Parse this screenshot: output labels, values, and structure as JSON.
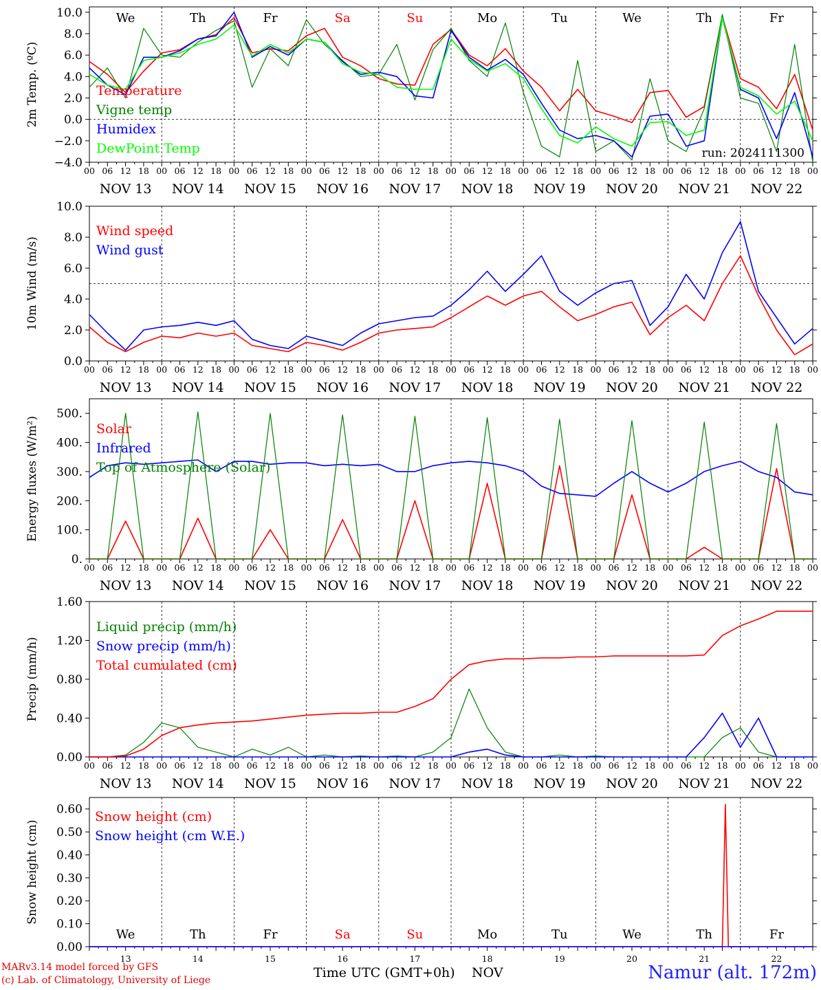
{
  "days": [
    {
      "weekday": "We",
      "weekend": false,
      "date": "NOV 13",
      "num": "13"
    },
    {
      "weekday": "Th",
      "weekend": false,
      "date": "NOV 14",
      "num": "14"
    },
    {
      "weekday": "Fr",
      "weekend": false,
      "date": "NOV 15",
      "num": "15"
    },
    {
      "weekday": "Sa",
      "weekend": true,
      "date": "NOV 16",
      "num": "16"
    },
    {
      "weekday": "Su",
      "weekend": true,
      "date": "NOV 17",
      "num": "17"
    },
    {
      "weekday": "Mo",
      "weekend": false,
      "date": "NOV 18",
      "num": "18"
    },
    {
      "weekday": "Tu",
      "weekend": false,
      "date": "NOV 19",
      "num": "19"
    },
    {
      "weekday": "We",
      "weekend": false,
      "date": "NOV 20",
      "num": "20"
    },
    {
      "weekday": "Th",
      "weekend": false,
      "date": "NOV 21",
      "num": "21"
    },
    {
      "weekday": "Fr",
      "weekend": false,
      "date": "NOV 22",
      "num": "22"
    }
  ],
  "hour_ticks": [
    "00",
    "06",
    "12",
    "18"
  ],
  "last_tick": "00",
  "colors": {
    "red": "#ff0000",
    "green": "#008000",
    "blue": "#0000ff",
    "lightgreen": "#00ff00",
    "weekend": "#ff0000",
    "text": "#000000"
  },
  "footer": {
    "credit_line1": "MARv3.14 model forced by GFS",
    "credit_line2": "(c) Lab. of Climatology, University of Liege",
    "xlabel": "Time UTC (GMT+0h)",
    "month": "NOV",
    "location": "Namur (alt. 172m)"
  },
  "chart_data": [
    {
      "type": "line",
      "ylabel": "2m Temp. (ºC)",
      "ylim": [
        -4,
        10.5
      ],
      "yticks": [
        -4,
        -2,
        0,
        2,
        4,
        6,
        8,
        10
      ],
      "ytick_labels": [
        "−4.0",
        "−2.0",
        "0.0",
        "2.0",
        "4.0",
        "6.0",
        "8.0",
        "10.0"
      ],
      "ref_line": 0,
      "annotation": "run: 2024111300",
      "show_weekdays": true,
      "x_hours": [
        0,
        6,
        12,
        18,
        24,
        30,
        36,
        42,
        48,
        54,
        60,
        66,
        72,
        78,
        84,
        90,
        96,
        102,
        108,
        114,
        120,
        126,
        132,
        138,
        144,
        150,
        156,
        162,
        168,
        174,
        180,
        186,
        192,
        198,
        204,
        210,
        216,
        222,
        228,
        234,
        240
      ],
      "series": [
        {
          "name": "Temperature",
          "color": "red",
          "values": [
            5.4,
            4.2,
            2.5,
            4.5,
            6.2,
            6.5,
            7.5,
            7.9,
            9.5,
            6.2,
            6.6,
            6.4,
            7.8,
            8.5,
            5.8,
            5.0,
            3.8,
            3.3,
            3.2,
            7.0,
            8.4,
            6.0,
            5.0,
            6.6,
            4.5,
            3.0,
            0.8,
            2.8,
            0.8,
            0.3,
            -0.3,
            2.5,
            2.7,
            0.2,
            1.2,
            9.6,
            3.8,
            3.0,
            1.0,
            4.2,
            -1.0
          ]
        },
        {
          "name": "Vigne temp",
          "color": "green",
          "values": [
            3.0,
            4.8,
            2.0,
            8.5,
            6.0,
            5.8,
            7.2,
            8.3,
            9.2,
            3.0,
            6.6,
            5.0,
            9.3,
            7.0,
            5.5,
            4.0,
            4.2,
            7.0,
            1.8,
            6.5,
            8.5,
            5.5,
            4.0,
            9.0,
            2.5,
            -2.5,
            -3.5,
            5.5,
            -3.0,
            -2.0,
            -3.8,
            3.8,
            -2.0,
            -3.0,
            1.0,
            9.8,
            2.0,
            1.5,
            -3.0,
            7.0,
            -4.0
          ]
        },
        {
          "name": "Humidex",
          "color": "blue",
          "values": [
            4.8,
            3.2,
            2.3,
            5.8,
            5.8,
            6.4,
            7.5,
            7.8,
            10.0,
            5.8,
            6.8,
            6.0,
            7.5,
            7.2,
            5.4,
            4.2,
            4.4,
            4.0,
            2.2,
            2.0,
            8.3,
            5.8,
            4.6,
            5.6,
            4.2,
            1.5,
            -1.0,
            -1.8,
            -1.5,
            -2.0,
            -3.5,
            0.3,
            0.5,
            -2.5,
            -2.0,
            9.5,
            2.8,
            2.0,
            -1.8,
            2.5,
            -3.5
          ]
        },
        {
          "name": "DewPoint Temp",
          "color": "lightgreen",
          "values": [
            4.2,
            3.2,
            2.8,
            5.5,
            5.8,
            6.2,
            7.0,
            7.5,
            8.8,
            5.9,
            7.0,
            6.2,
            7.5,
            7.2,
            5.2,
            4.4,
            4.2,
            3.0,
            2.8,
            2.8,
            7.5,
            5.6,
            4.5,
            5.2,
            3.8,
            1.0,
            -1.5,
            -2.2,
            -0.7,
            -1.8,
            -2.5,
            -0.3,
            -0.2,
            -1.5,
            -1.0,
            9.5,
            3.0,
            2.2,
            0.5,
            1.7,
            -2.0
          ]
        }
      ]
    },
    {
      "type": "line",
      "ylabel": "10m Wind (m/s)",
      "ylim": [
        0,
        10
      ],
      "yticks": [
        0,
        2,
        4,
        6,
        8,
        10
      ],
      "ytick_labels": [
        "0.0",
        "2.0",
        "4.0",
        "6.0",
        "8.0",
        "10.0"
      ],
      "ref_line": 5,
      "x_hours": [
        0,
        6,
        12,
        18,
        24,
        30,
        36,
        42,
        48,
        54,
        60,
        66,
        72,
        78,
        84,
        90,
        96,
        102,
        108,
        114,
        120,
        126,
        132,
        138,
        144,
        150,
        156,
        162,
        168,
        174,
        180,
        186,
        192,
        198,
        204,
        210,
        216,
        222,
        228,
        234,
        240
      ],
      "series": [
        {
          "name": "Wind speed",
          "color": "red",
          "values": [
            2.2,
            1.2,
            0.6,
            1.2,
            1.6,
            1.5,
            1.8,
            1.6,
            1.8,
            1.0,
            0.8,
            0.6,
            1.2,
            1.0,
            0.7,
            1.2,
            1.8,
            2.0,
            2.1,
            2.2,
            2.8,
            3.5,
            4.2,
            3.6,
            4.2,
            4.5,
            3.5,
            2.6,
            3.0,
            3.5,
            3.8,
            1.7,
            2.8,
            3.6,
            2.6,
            5.0,
            6.8,
            4.2,
            2.0,
            0.4,
            1.1
          ]
        },
        {
          "name": "Wind gust",
          "color": "blue",
          "values": [
            3.0,
            1.8,
            0.7,
            2.0,
            2.2,
            2.3,
            2.5,
            2.3,
            2.6,
            1.4,
            1.0,
            0.8,
            1.6,
            1.3,
            1.0,
            1.8,
            2.4,
            2.6,
            2.8,
            2.9,
            3.6,
            4.6,
            5.8,
            4.5,
            5.6,
            6.8,
            4.5,
            3.6,
            4.4,
            5.0,
            5.2,
            2.3,
            3.5,
            5.6,
            4.0,
            7.0,
            9.0,
            4.5,
            2.8,
            1.1,
            2.1
          ]
        }
      ]
    },
    {
      "type": "line",
      "ylabel": "Energy fluxes (W/m²)",
      "ylim": [
        0,
        550
      ],
      "yticks": [
        0,
        100,
        200,
        300,
        400,
        500
      ],
      "ytick_labels": [
        "0.",
        "100.",
        "200.",
        "300.",
        "400.",
        "500."
      ],
      "ref_line": null,
      "x_hours": [
        0,
        6,
        12,
        18,
        24,
        30,
        36,
        42,
        48,
        54,
        60,
        66,
        72,
        78,
        84,
        90,
        96,
        102,
        108,
        114,
        120,
        126,
        132,
        138,
        144,
        150,
        156,
        162,
        168,
        174,
        180,
        186,
        192,
        198,
        204,
        210,
        216,
        222,
        228,
        234,
        240
      ],
      "series": [
        {
          "name": "Solar",
          "color": "red",
          "values": [
            0,
            0,
            130,
            0,
            0,
            0,
            140,
            0,
            0,
            0,
            100,
            0,
            0,
            0,
            135,
            0,
            0,
            0,
            200,
            0,
            0,
            0,
            260,
            0,
            0,
            0,
            320,
            0,
            0,
            0,
            220,
            0,
            0,
            0,
            40,
            0,
            0,
            0,
            310,
            0,
            0
          ]
        },
        {
          "name": "Infrared",
          "color": "blue",
          "values": [
            280,
            320,
            330,
            325,
            330,
            335,
            340,
            300,
            335,
            335,
            325,
            330,
            330,
            320,
            325,
            320,
            325,
            300,
            300,
            320,
            330,
            335,
            330,
            320,
            300,
            250,
            225,
            220,
            215,
            260,
            300,
            260,
            230,
            260,
            300,
            320,
            335,
            300,
            280,
            230,
            220
          ]
        },
        {
          "name": "Top of Atmosphere (Solar)",
          "color": "green",
          "values": [
            0,
            0,
            500,
            0,
            0,
            0,
            505,
            0,
            0,
            0,
            500,
            0,
            0,
            0,
            495,
            0,
            0,
            0,
            490,
            0,
            0,
            0,
            485,
            0,
            0,
            0,
            480,
            0,
            0,
            0,
            475,
            0,
            0,
            0,
            470,
            0,
            0,
            0,
            465,
            0,
            0
          ]
        }
      ]
    },
    {
      "type": "line",
      "ylabel": "Precip (mm/h)",
      "ylim": [
        0,
        1.6
      ],
      "yticks": [
        0,
        0.4,
        0.8,
        1.2,
        1.6
      ],
      "ytick_labels": [
        "0.00",
        "0.40",
        "0.80",
        "1.20",
        "1.60"
      ],
      "ref_line": null,
      "x_hours": [
        0,
        6,
        12,
        18,
        24,
        30,
        36,
        42,
        48,
        54,
        60,
        66,
        72,
        78,
        84,
        90,
        96,
        102,
        108,
        114,
        120,
        126,
        132,
        138,
        144,
        150,
        156,
        162,
        168,
        174,
        180,
        186,
        192,
        198,
        204,
        210,
        216,
        222,
        228,
        234,
        240
      ],
      "series": [
        {
          "name": "Liquid precip (mm/h)",
          "color": "green",
          "values": [
            0,
            0,
            0.02,
            0.15,
            0.35,
            0.3,
            0.1,
            0.05,
            0,
            0.08,
            0.02,
            0.1,
            0,
            0.02,
            0,
            0.01,
            0,
            0.01,
            0,
            0.05,
            0.2,
            0.7,
            0.3,
            0.05,
            0,
            0,
            0.02,
            0,
            0.01,
            0,
            0,
            0,
            0,
            0,
            0,
            0.2,
            0.3,
            0.05,
            0,
            0,
            0
          ]
        },
        {
          "name": "Snow precip (mm/h)",
          "color": "blue",
          "values": [
            0,
            0,
            0,
            0,
            0,
            0,
            0,
            0,
            0,
            0,
            0,
            0,
            0,
            0,
            0,
            0,
            0,
            0,
            0,
            0,
            0,
            0.05,
            0.08,
            0.02,
            0,
            0,
            0,
            0,
            0,
            0,
            0,
            0,
            0,
            0,
            0.2,
            0.45,
            0.1,
            0.4,
            0,
            0,
            0
          ]
        },
        {
          "name": "Total cumulated (cm)",
          "color": "red",
          "values": [
            0,
            0,
            0.01,
            0.08,
            0.22,
            0.3,
            0.33,
            0.35,
            0.36,
            0.37,
            0.39,
            0.41,
            0.43,
            0.44,
            0.45,
            0.45,
            0.46,
            0.46,
            0.52,
            0.6,
            0.8,
            0.95,
            0.99,
            1.01,
            1.01,
            1.02,
            1.02,
            1.03,
            1.03,
            1.04,
            1.04,
            1.04,
            1.04,
            1.04,
            1.05,
            1.25,
            1.35,
            1.42,
            1.5,
            1.5,
            1.5
          ]
        }
      ]
    },
    {
      "type": "line",
      "ylabel": "Snow height (cm)",
      "ylim": [
        0,
        0.65
      ],
      "yticks": [
        0,
        0.1,
        0.2,
        0.3,
        0.4,
        0.5,
        0.6
      ],
      "ytick_labels": [
        "0.00",
        "0.10",
        "0.20",
        "0.30",
        "0.40",
        "0.50",
        "0.60"
      ],
      "ref_line": null,
      "show_weekdays_bottom": true,
      "x_hours": [
        0,
        24,
        48,
        72,
        96,
        120,
        144,
        168,
        192,
        210,
        211,
        212,
        213,
        240
      ],
      "series": [
        {
          "name": "Snow height (cm)",
          "color": "red",
          "values": [
            0,
            0,
            0,
            0,
            0,
            0,
            0,
            0,
            0,
            0,
            0.62,
            0,
            0,
            0
          ]
        },
        {
          "name": "Snow height (cm W.E.)",
          "color": "blue",
          "values": [
            0,
            0,
            0,
            0,
            0,
            0,
            0,
            0,
            0,
            0,
            0,
            0,
            0,
            0
          ]
        }
      ]
    }
  ]
}
